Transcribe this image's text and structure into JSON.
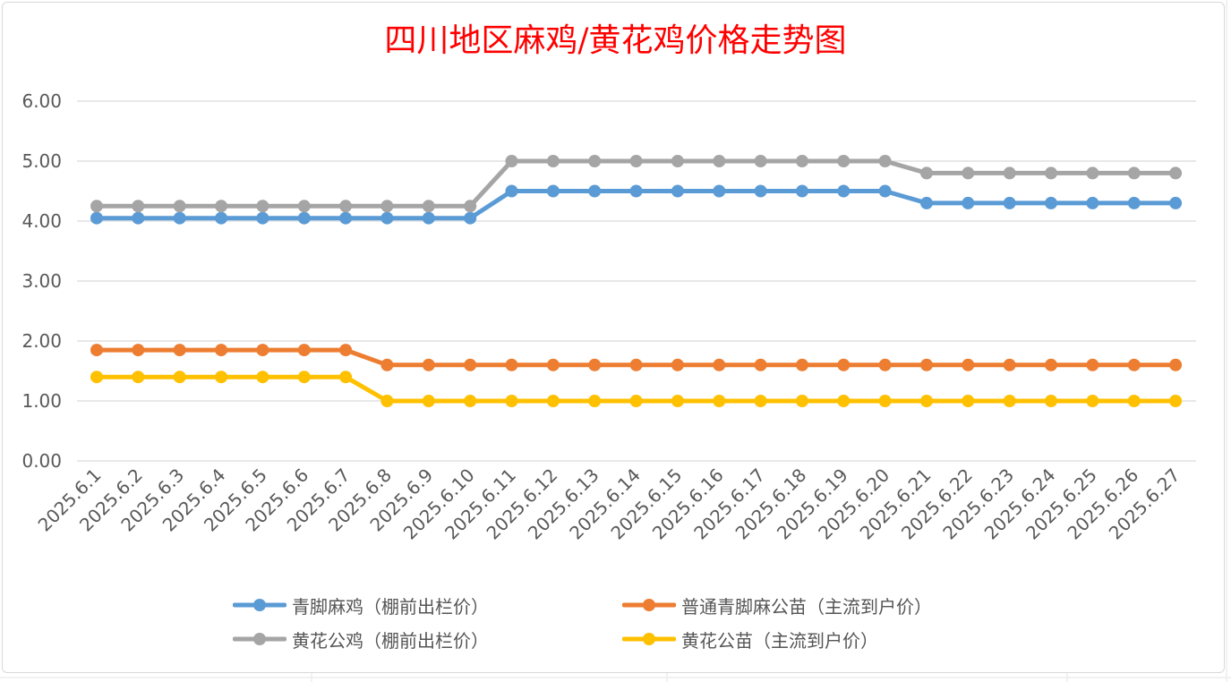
{
  "chart_data": {
    "type": "line",
    "title": "四川地区麻鸡/黄花鸡价格走势图",
    "xlabel": "",
    "ylabel": "",
    "ylim": [
      0,
      6
    ],
    "yticks": [
      "0.00",
      "1.00",
      "2.00",
      "3.00",
      "4.00",
      "5.00",
      "6.00"
    ],
    "grid": true,
    "legend_position": "bottom",
    "categories": [
      "2025.6.1",
      "2025.6.2",
      "2025.6.3",
      "2025.6.4",
      "2025.6.5",
      "2025.6.6",
      "2025.6.7",
      "2025.6.8",
      "2025.6.9",
      "2025.6.10",
      "2025.6.11",
      "2025.6.12",
      "2025.6.13",
      "2025.6.14",
      "2025.6.15",
      "2025.6.16",
      "2025.6.17",
      "2025.6.18",
      "2025.6.19",
      "2025.6.20",
      "2025.6.21",
      "2025.6.22",
      "2025.6.23",
      "2025.6.24",
      "2025.6.25",
      "2025.6.26",
      "2025.6.27"
    ],
    "series": [
      {
        "name": "青脚麻鸡（棚前出栏价）",
        "color": "#5b9bd5",
        "values": [
          4.05,
          4.05,
          4.05,
          4.05,
          4.05,
          4.05,
          4.05,
          4.05,
          4.05,
          4.05,
          4.5,
          4.5,
          4.5,
          4.5,
          4.5,
          4.5,
          4.5,
          4.5,
          4.5,
          4.5,
          4.3,
          4.3,
          4.3,
          4.3,
          4.3,
          4.3,
          4.3
        ]
      },
      {
        "name": "普通青脚麻公苗（主流到户价）",
        "color": "#ed7d31",
        "values": [
          1.85,
          1.85,
          1.85,
          1.85,
          1.85,
          1.85,
          1.85,
          1.6,
          1.6,
          1.6,
          1.6,
          1.6,
          1.6,
          1.6,
          1.6,
          1.6,
          1.6,
          1.6,
          1.6,
          1.6,
          1.6,
          1.6,
          1.6,
          1.6,
          1.6,
          1.6,
          1.6
        ]
      },
      {
        "name": "黄花公鸡（棚前出栏价）",
        "color": "#a5a5a5",
        "values": [
          4.25,
          4.25,
          4.25,
          4.25,
          4.25,
          4.25,
          4.25,
          4.25,
          4.25,
          4.25,
          5.0,
          5.0,
          5.0,
          5.0,
          5.0,
          5.0,
          5.0,
          5.0,
          5.0,
          5.0,
          4.8,
          4.8,
          4.8,
          4.8,
          4.8,
          4.8,
          4.8
        ]
      },
      {
        "name": "黄花公苗（主流到户价）",
        "color": "#ffc000",
        "values": [
          1.4,
          1.4,
          1.4,
          1.4,
          1.4,
          1.4,
          1.4,
          1.0,
          1.0,
          1.0,
          1.0,
          1.0,
          1.0,
          1.0,
          1.0,
          1.0,
          1.0,
          1.0,
          1.0,
          1.0,
          1.0,
          1.0,
          1.0,
          1.0,
          1.0,
          1.0,
          1.0
        ]
      }
    ]
  },
  "colors": {
    "title": "#ff0000",
    "gridline": "#d9d9d9",
    "axis_text": "#595959"
  }
}
